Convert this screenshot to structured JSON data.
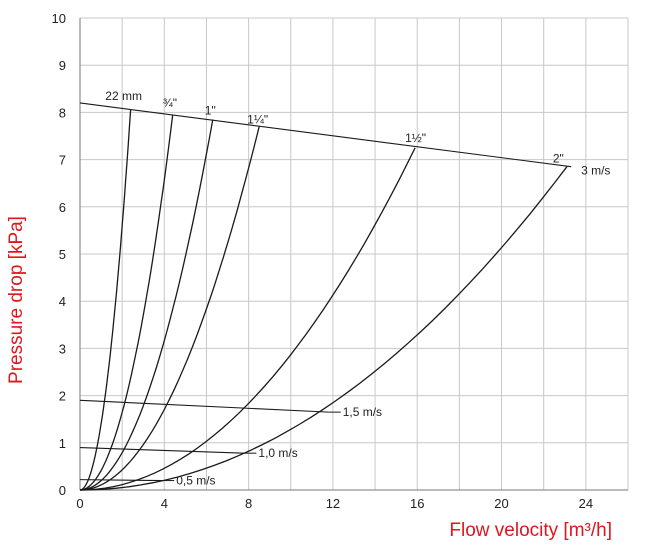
{
  "chart_data": {
    "type": "line",
    "xlabel": "Flow velocity [m³/h]",
    "ylabel": "Pressure drop [kPa]",
    "xlim": [
      0,
      26
    ],
    "ylim": [
      0,
      10
    ],
    "x_ticks": [
      "0",
      "4",
      "8",
      "12",
      "16",
      "20",
      "24"
    ],
    "y_ticks": [
      "0",
      "1",
      "2",
      "3",
      "4",
      "5",
      "6",
      "7",
      "8",
      "9",
      "10"
    ],
    "grid": true,
    "series": [
      {
        "name": "22 mm",
        "x": [
          0,
          2.4
        ],
        "y": [
          0,
          8.05
        ]
      },
      {
        "name": "¾\"",
        "x": [
          0,
          4.4
        ],
        "y": [
          0,
          7.95
        ]
      },
      {
        "name": "1\"",
        "x": [
          0,
          6.3
        ],
        "y": [
          0,
          7.85
        ]
      },
      {
        "name": "1¼\"",
        "x": [
          0,
          8.5
        ],
        "y": [
          0,
          7.7
        ]
      },
      {
        "name": "1½\"",
        "x": [
          0,
          15.9
        ],
        "y": [
          0,
          7.25
        ]
      },
      {
        "name": "2\"",
        "x": [
          0,
          23.1
        ],
        "y": [
          0,
          6.85
        ]
      }
    ],
    "velocity_lines": [
      {
        "name": "3 m/s",
        "x": [
          0,
          23.3
        ],
        "y": [
          8.2,
          6.85
        ]
      },
      {
        "name": "1,5 m/s",
        "x": [
          0,
          11.8
        ],
        "y": [
          1.9,
          1.65
        ]
      },
      {
        "name": "1,0 m/s",
        "x": [
          0,
          7.8
        ],
        "y": [
          0.9,
          0.78
        ]
      },
      {
        "name": "0,5 m/s",
        "x": [
          0,
          3.9
        ],
        "y": [
          0.22,
          0.2
        ]
      }
    ]
  },
  "colors": {
    "curve": "#1a1a1a",
    "grid": "#c8c8c8",
    "axis_title": "#e0161b"
  }
}
